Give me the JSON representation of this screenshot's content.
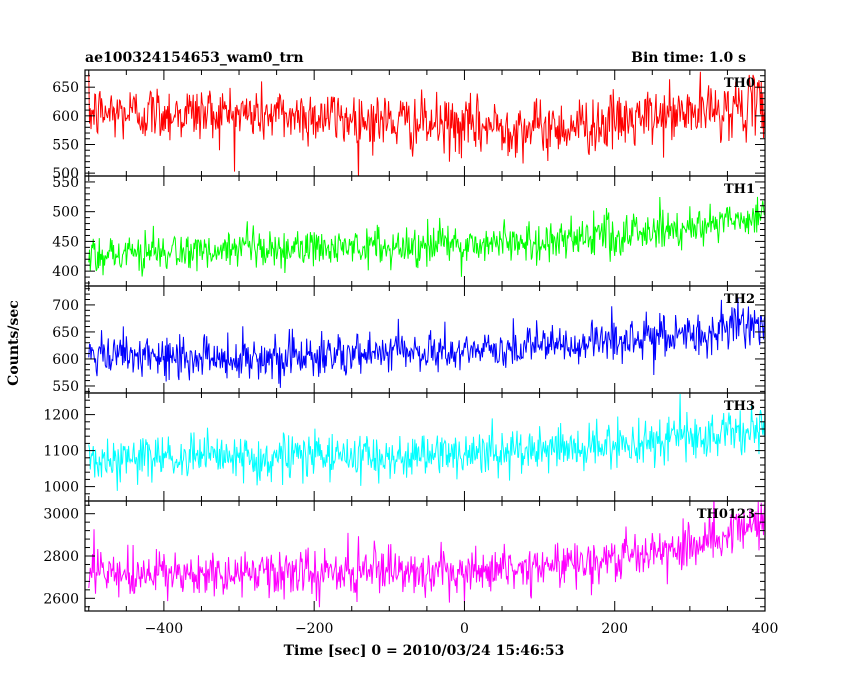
{
  "header": {
    "left_title": "ae100324154653_wam0_trn",
    "right_title": "Bin time: 1.0 s"
  },
  "chart_data": {
    "type": "line",
    "title": "ae100324154653_wam0_trn",
    "subtitle": "Bin time: 1.0 s",
    "xlabel": "Time [sec] 0 = 2010/03/24 15:46:53",
    "ylabel": "Counts/sec",
    "xlim": [
      -505,
      400
    ],
    "x_ticks": [
      -400,
      -200,
      0,
      200,
      400
    ],
    "x_tick_labels": [
      "−400",
      "−200",
      "0",
      "200",
      "400"
    ],
    "bin_time": 1.0,
    "grid": false,
    "legend": "none",
    "panels": [
      {
        "name": "TH0",
        "color": "#ff0000",
        "ylim": [
          495,
          680
        ],
        "yticks": [
          500,
          550,
          600,
          650
        ],
        "trend": [
          [
            -505,
            605
          ],
          [
            -350,
            605
          ],
          [
            -200,
            600
          ],
          [
            -50,
            585
          ],
          [
            0,
            580
          ],
          [
            50,
            582
          ],
          [
            100,
            578
          ],
          [
            150,
            583
          ],
          [
            200,
            588
          ],
          [
            300,
            605
          ],
          [
            400,
            620
          ]
        ],
        "noise_sd": 25
      },
      {
        "name": "TH1",
        "color": "#00ff00",
        "ylim": [
          375,
          560
        ],
        "yticks": [
          400,
          450,
          500,
          550
        ],
        "trend": [
          [
            -505,
            430
          ],
          [
            -300,
            432
          ],
          [
            -200,
            438
          ],
          [
            0,
            445
          ],
          [
            100,
            450
          ],
          [
            200,
            460
          ],
          [
            300,
            475
          ],
          [
            400,
            495
          ]
        ],
        "noise_sd": 17
      },
      {
        "name": "TH2",
        "color": "#0000ff",
        "ylim": [
          537,
          735
        ],
        "yticks": [
          550,
          600,
          650,
          700
        ],
        "trend": [
          [
            -505,
            603
          ],
          [
            -300,
            603
          ],
          [
            -200,
            605
          ],
          [
            0,
            615
          ],
          [
            100,
            622
          ],
          [
            200,
            632
          ],
          [
            300,
            645
          ],
          [
            400,
            665
          ]
        ],
        "noise_sd": 20
      },
      {
        "name": "TH3",
        "color": "#00ffff",
        "ylim": [
          960,
          1260
        ],
        "yticks": [
          1000,
          1100,
          1200
        ],
        "trend": [
          [
            -505,
            1075
          ],
          [
            -300,
            1080
          ],
          [
            -200,
            1083
          ],
          [
            0,
            1090
          ],
          [
            100,
            1100
          ],
          [
            200,
            1115
          ],
          [
            300,
            1135
          ],
          [
            400,
            1165
          ]
        ],
        "noise_sd": 32
      },
      {
        "name": "TH0123",
        "color": "#ff00ff",
        "ylim": [
          2540,
          3060
        ],
        "yticks": [
          2600,
          2800,
          3000
        ],
        "trend": [
          [
            -505,
            2710
          ],
          [
            -300,
            2710
          ],
          [
            -200,
            2715
          ],
          [
            0,
            2735
          ],
          [
            100,
            2750
          ],
          [
            200,
            2790
          ],
          [
            300,
            2860
          ],
          [
            400,
            2960
          ]
        ],
        "noise_sd": 55
      }
    ]
  }
}
